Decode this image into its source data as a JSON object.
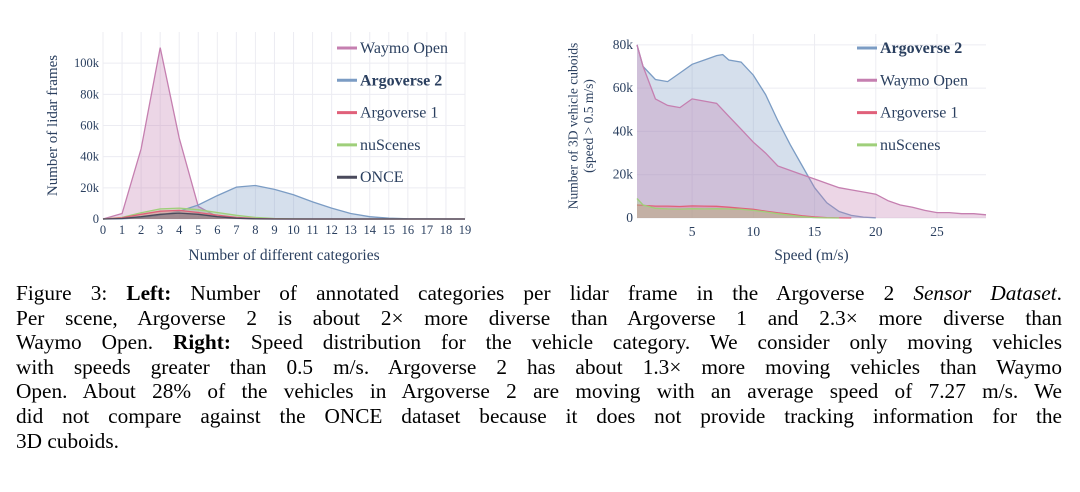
{
  "chart_data": [
    {
      "type": "area",
      "xlabel": "Number of different categories",
      "ylabel": "Number of lidar frames",
      "xlim": [
        0,
        19
      ],
      "ylim": [
        0,
        120000
      ],
      "x_ticks": [
        "0",
        "1",
        "2",
        "3",
        "4",
        "5",
        "6",
        "7",
        "8",
        "9",
        "10",
        "11",
        "12",
        "13",
        "14",
        "15",
        "16",
        "17",
        "18",
        "19"
      ],
      "y_ticks": [
        {
          "value": 0,
          "label": "0"
        },
        {
          "value": 20000,
          "label": "20k"
        },
        {
          "value": 40000,
          "label": "40k"
        },
        {
          "value": 60000,
          "label": "60k"
        },
        {
          "value": 80000,
          "label": "80k"
        },
        {
          "value": 100000,
          "label": "100k"
        }
      ],
      "grid": true,
      "legend_position": "top-right",
      "series": [
        {
          "name": "Waymo Open",
          "color": "#c57fb0",
          "bold": false,
          "x": [
            0,
            1,
            2,
            3,
            4,
            5,
            6,
            7,
            8,
            9,
            10,
            11,
            12,
            13,
            14,
            15,
            16,
            17,
            18,
            19
          ],
          "y": [
            0,
            3500,
            45000,
            110000,
            52000,
            8000,
            1500,
            400,
            100,
            0,
            0,
            0,
            0,
            0,
            0,
            0,
            0,
            0,
            0,
            0
          ]
        },
        {
          "name": "Argoverse 2",
          "color": "#7b9cc4",
          "bold": true,
          "x": [
            0,
            1,
            2,
            3,
            4,
            5,
            6,
            7,
            8,
            9,
            10,
            11,
            12,
            13,
            14,
            15,
            16,
            17,
            18,
            19
          ],
          "y": [
            0,
            200,
            800,
            2500,
            5000,
            9000,
            15000,
            20500,
            21500,
            19000,
            15500,
            11000,
            7000,
            3500,
            1500,
            500,
            150,
            50,
            10,
            0
          ]
        },
        {
          "name": "Argoverse 1",
          "color": "#e0607a",
          "bold": false,
          "x": [
            0,
            1,
            2,
            3,
            4,
            5,
            6,
            7,
            8,
            9,
            10,
            11,
            12,
            13,
            14,
            15,
            16,
            17,
            18,
            19
          ],
          "y": [
            0,
            800,
            3000,
            5000,
            5500,
            4200,
            2500,
            1000,
            300,
            80,
            0,
            0,
            0,
            0,
            0,
            0,
            0,
            0,
            0,
            0
          ]
        },
        {
          "name": "nuScenes",
          "color": "#9fcf7a",
          "bold": false,
          "x": [
            0,
            1,
            2,
            3,
            4,
            5,
            6,
            7,
            8,
            9,
            10,
            11,
            12,
            13,
            14,
            15,
            16,
            17,
            18,
            19
          ],
          "y": [
            0,
            1000,
            4000,
            6500,
            7000,
            6000,
            4200,
            2400,
            1000,
            300,
            50,
            0,
            0,
            0,
            0,
            0,
            0,
            0,
            0,
            0
          ]
        },
        {
          "name": "ONCE",
          "color": "#4a4a5c",
          "bold": false,
          "x": [
            0,
            1,
            2,
            3,
            4,
            5,
            6,
            7,
            8,
            9,
            10,
            11,
            12,
            13,
            14,
            15,
            16,
            17,
            18,
            19
          ],
          "y": [
            0,
            300,
            1500,
            3000,
            3800,
            3000,
            1500,
            500,
            150,
            0,
            0,
            0,
            0,
            0,
            0,
            0,
            0,
            0,
            0,
            0
          ]
        }
      ]
    },
    {
      "type": "area",
      "xlabel": "Speed (m/s)",
      "ylabel": "Number of 3D vehicle cuboids\n(speed > 0.5 m/s)",
      "xlim": [
        0.5,
        29
      ],
      "ylim": [
        0,
        85000
      ],
      "x_ticks": [
        {
          "value": 5,
          "label": "5"
        },
        {
          "value": 10,
          "label": "10"
        },
        {
          "value": 15,
          "label": "15"
        },
        {
          "value": 20,
          "label": "20"
        },
        {
          "value": 25,
          "label": "25"
        }
      ],
      "y_ticks": [
        {
          "value": 0,
          "label": "0"
        },
        {
          "value": 20000,
          "label": "20k"
        },
        {
          "value": 40000,
          "label": "40k"
        },
        {
          "value": 60000,
          "label": "60k"
        },
        {
          "value": 80000,
          "label": "80k"
        }
      ],
      "grid": true,
      "legend_position": "top-right",
      "series": [
        {
          "name": "Argoverse 2",
          "color": "#7b9cc4",
          "bold": true,
          "x": [
            0.5,
            1,
            2,
            3,
            4,
            5,
            6,
            7,
            7.5,
            8,
            9,
            10,
            11,
            12,
            13,
            14,
            15,
            16,
            17,
            18,
            19,
            20
          ],
          "y": [
            80000,
            70000,
            64000,
            63000,
            67000,
            71000,
            73000,
            75000,
            75500,
            73000,
            72000,
            66000,
            57000,
            45000,
            34000,
            24000,
            14000,
            7000,
            3000,
            1200,
            400,
            100
          ]
        },
        {
          "name": "Waymo Open",
          "color": "#c57fb0",
          "bold": false,
          "x": [
            0.5,
            1,
            2,
            3,
            4,
            5,
            6,
            7,
            8,
            9,
            10,
            11,
            12,
            13,
            14,
            15,
            16,
            17,
            18,
            19,
            20,
            21,
            22,
            23,
            24,
            25,
            26,
            27,
            28,
            29
          ],
          "y": [
            80000,
            70000,
            55000,
            52000,
            51000,
            55000,
            54000,
            53000,
            47000,
            41000,
            35000,
            30000,
            24000,
            22000,
            20000,
            18000,
            16000,
            14000,
            13000,
            12000,
            11000,
            8000,
            6000,
            5000,
            3500,
            2500,
            2500,
            2000,
            2000,
            1500
          ]
        },
        {
          "name": "Argoverse 1",
          "color": "#e0607a",
          "bold": false,
          "x": [
            0.5,
            1,
            2,
            3,
            4,
            5,
            6,
            7,
            8,
            9,
            10,
            11,
            12,
            13,
            14,
            15,
            16,
            17,
            18
          ],
          "y": [
            6000,
            5800,
            5500,
            5500,
            5300,
            5600,
            5500,
            5400,
            5000,
            4500,
            4000,
            3200,
            2400,
            1800,
            1000,
            500,
            200,
            60,
            0
          ]
        },
        {
          "name": "nuScenes",
          "color": "#9fcf7a",
          "bold": false,
          "x": [
            0.5,
            1,
            2,
            3,
            4,
            5,
            6,
            7,
            8,
            9,
            10,
            11,
            12,
            13,
            14,
            15,
            16,
            17
          ],
          "y": [
            9000,
            6000,
            4500,
            4200,
            4100,
            4300,
            4200,
            4300,
            4200,
            4000,
            3500,
            2800,
            2000,
            1300,
            600,
            200,
            60,
            0
          ]
        }
      ]
    }
  ],
  "caption": {
    "lines": [
      [
        {
          "t": "Figure 3: "
        },
        {
          "t": "Left:",
          "b": true
        },
        {
          "t": " Number of annotated categories per lidar frame in the Argoverse 2 "
        },
        {
          "t": "Sensor Dataset",
          "i": true
        },
        {
          "t": "."
        }
      ],
      [
        {
          "t": "Per scene, Argoverse 2 is about 2× more diverse than Argoverse 1 and 2.3× more diverse than"
        }
      ],
      [
        {
          "t": "Waymo Open. "
        },
        {
          "t": "Right:",
          "b": true
        },
        {
          "t": " Speed distribution for the vehicle category. We consider only moving vehicles"
        }
      ],
      [
        {
          "t": "with speeds greater than 0.5 m/s. Argoverse 2 has about 1.3× more moving vehicles than Waymo"
        }
      ],
      [
        {
          "t": "Open. About 28% of the vehicles in Argoverse 2 are moving with an average speed of 7.27 m/s. We"
        }
      ],
      [
        {
          "t": "did not compare against the ONCE dataset because it does not provide tracking information for the"
        }
      ],
      [
        {
          "t": "3D cuboids."
        }
      ]
    ]
  }
}
